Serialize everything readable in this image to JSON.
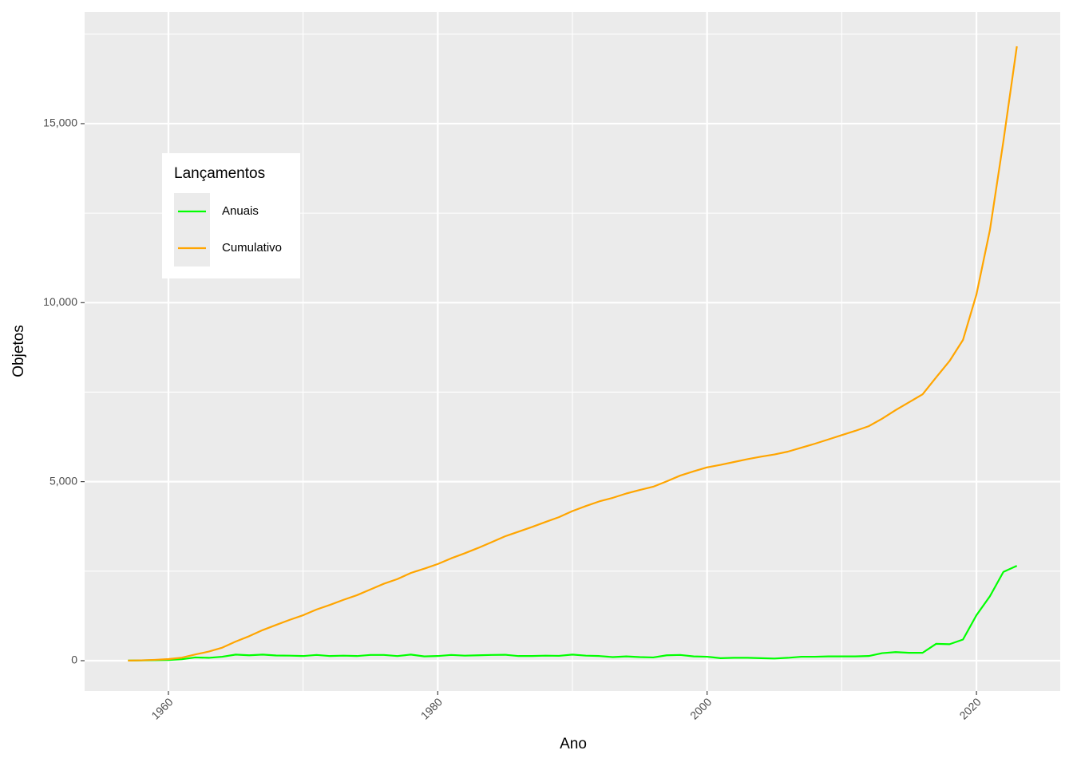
{
  "chart_data": {
    "type": "line",
    "x_label": "Ano",
    "y_label": "Objetos",
    "x": [
      1957,
      1958,
      1959,
      1960,
      1961,
      1962,
      1963,
      1964,
      1965,
      1966,
      1967,
      1968,
      1969,
      1970,
      1971,
      1972,
      1973,
      1974,
      1975,
      1976,
      1977,
      1978,
      1979,
      1980,
      1981,
      1982,
      1983,
      1984,
      1985,
      1986,
      1987,
      1988,
      1989,
      1990,
      1991,
      1992,
      1993,
      1994,
      1995,
      1996,
      1997,
      1998,
      1999,
      2000,
      2001,
      2002,
      2003,
      2004,
      2005,
      2006,
      2007,
      2008,
      2009,
      2010,
      2011,
      2012,
      2013,
      2014,
      2015,
      2016,
      2017,
      2018,
      2019,
      2020,
      2021,
      2022,
      2023
    ],
    "series": [
      {
        "name": "Anuais",
        "color": "#00ff00",
        "values": [
          2,
          8,
          14,
          20,
          40,
          90,
          80,
          110,
          170,
          150,
          170,
          145,
          140,
          130,
          160,
          130,
          140,
          130,
          160,
          160,
          130,
          170,
          120,
          130,
          160,
          140,
          150,
          160,
          165,
          130,
          130,
          140,
          135,
          170,
          140,
          130,
          100,
          120,
          100,
          90,
          150,
          160,
          120,
          110,
          70,
          80,
          80,
          70,
          60,
          80,
          110,
          110,
          120,
          120,
          120,
          130,
          210,
          240,
          220,
          220,
          470,
          460,
          590,
          1270,
          1800,
          2480,
          2650
        ]
      },
      {
        "name": "Cumulativo",
        "color": "#ffa500",
        "values": [
          2,
          10,
          24,
          44,
          84,
          174,
          254,
          364,
          534,
          684,
          854,
          999,
          1139,
          1269,
          1429,
          1559,
          1699,
          1829,
          1989,
          2149,
          2279,
          2449,
          2569,
          2699,
          2859,
          2999,
          3149,
          3309,
          3474,
          3604,
          3734,
          3874,
          4009,
          4179,
          4319,
          4449,
          4549,
          4669,
          4769,
          4859,
          5009,
          5169,
          5289,
          5399,
          5469,
          5549,
          5629,
          5699,
          5759,
          5839,
          5949,
          6059,
          6179,
          6299,
          6419,
          6549,
          6759,
          6999,
          7219,
          7439,
          7909,
          8369,
          8959,
          10229,
          12029,
          14509,
          17159
        ]
      }
    ],
    "xlim": [
      1953.78,
      2026.22
    ],
    "ylim": [
      -847,
      18119
    ],
    "xticks": [
      1960,
      1980,
      2000,
      2020
    ],
    "yticks": [
      0,
      {
        "value": 5000,
        "label": "5,000"
      },
      {
        "value": 10000,
        "label": "10,000"
      },
      {
        "value": 15000,
        "label": "15,000"
      }
    ],
    "xminorticks": [
      1970,
      1990,
      2010
    ],
    "yminorticks": [
      2500,
      7500,
      12500,
      17500
    ],
    "grid": true,
    "legend_title": "Lançamentos",
    "legend": "top-left"
  }
}
